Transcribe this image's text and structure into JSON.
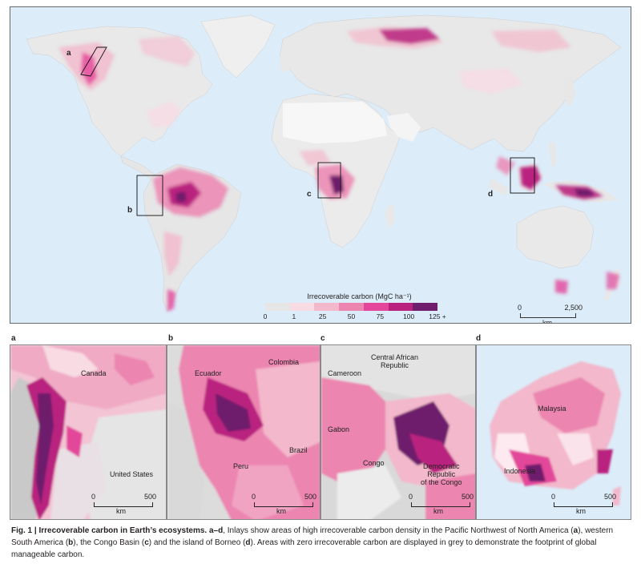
{
  "legend": {
    "title": "Irrecoverable carbon (MgC ha⁻¹)",
    "colors": [
      "#e6e6e6",
      "#f8dbe3",
      "#f3b8cb",
      "#ec85b0",
      "#e3469a",
      "#b9217f",
      "#6e1e6c"
    ],
    "ticks": [
      "0",
      "1",
      "25",
      "50",
      "75",
      "100",
      "125 +"
    ]
  },
  "map_scale": {
    "start": "0",
    "end": "2,500",
    "unit": "km"
  },
  "inset_markers": [
    "a",
    "b",
    "c",
    "d"
  ],
  "panels": [
    {
      "letter": "a",
      "labels": [
        "Canada",
        "United States"
      ],
      "scale": {
        "start": "0",
        "end": "500",
        "unit": "km"
      }
    },
    {
      "letter": "b",
      "labels": [
        "Ecuador",
        "Colombia",
        "Peru",
        "Brazil"
      ],
      "scale": {
        "start": "0",
        "end": "500",
        "unit": "km"
      }
    },
    {
      "letter": "c",
      "labels": [
        "Central African\nRepublic",
        "Cameroon",
        "Gabon",
        "Congo",
        "Democratic\nRepublic\nof the Congo"
      ],
      "scale": {
        "start": "0",
        "end": "500",
        "unit": "km"
      }
    },
    {
      "letter": "d",
      "labels": [
        "Malaysia",
        "Indonesia"
      ],
      "scale": {
        "start": "0",
        "end": "500",
        "unit": "km"
      }
    }
  ],
  "caption": {
    "label": "Fig. 1 | Irrecoverable carbon in Earth’s ecosystems. a–d",
    "text_1": ", Inlays show areas of high irrecoverable carbon density in the Pacific Northwest of North America (",
    "a": "a",
    "text_2": "), western South America (",
    "b": "b",
    "text_3": "), the Congo Basin (",
    "c": "c",
    "text_4": ") and the island of Borneo (",
    "d": "d",
    "text_5": "). Areas with zero irrecoverable carbon are displayed in grey to demonstrate the footprint of global manageable carbon."
  }
}
